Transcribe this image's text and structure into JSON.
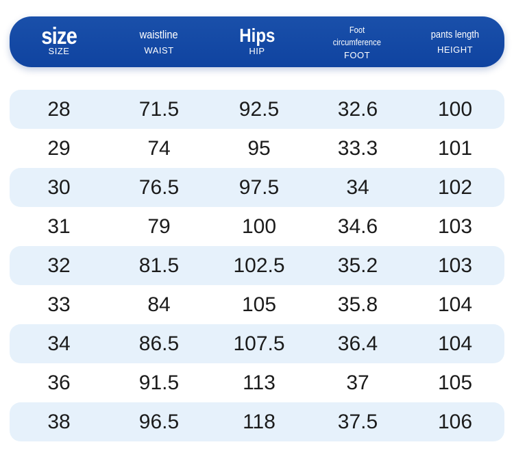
{
  "header": {
    "columns": [
      {
        "title": "size",
        "subtitle": "SIZE"
      },
      {
        "title": "waistline",
        "subtitle": "WAIST"
      },
      {
        "title": "Hips",
        "subtitle": "HIP"
      },
      {
        "title_line1": "Foot",
        "title_line2": "circumference",
        "subtitle": "FOOT"
      },
      {
        "title": "pants length",
        "subtitle": "HEIGHT"
      }
    ]
  },
  "rows": [
    [
      "28",
      "71.5",
      "92.5",
      "32.6",
      "100"
    ],
    [
      "29",
      "74",
      "95",
      "33.3",
      "101"
    ],
    [
      "30",
      "76.5",
      "97.5",
      "34",
      "102"
    ],
    [
      "31",
      "79",
      "100",
      "34.6",
      "103"
    ],
    [
      "32",
      "81.5",
      "102.5",
      "35.2",
      "103"
    ],
    [
      "33",
      "84",
      "105",
      "35.8",
      "104"
    ],
    [
      "34",
      "86.5",
      "107.5",
      "36.4",
      "104"
    ],
    [
      "36",
      "91.5",
      "113",
      "37",
      "105"
    ],
    [
      "38",
      "96.5",
      "118",
      "37.5",
      "106"
    ]
  ],
  "colors": {
    "header_bg": "#1a50aa",
    "header_text": "#ffffff",
    "row_stripe": "#e6f1fb",
    "cell_text": "#1b1b1b"
  }
}
